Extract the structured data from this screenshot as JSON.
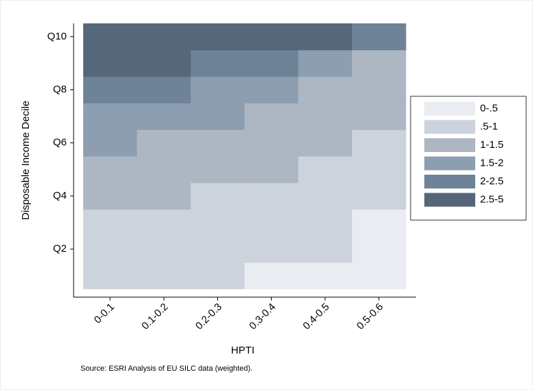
{
  "chart_data": {
    "type": "heatmap",
    "x_label": "HPTI",
    "y_label": "Disposable Income Decile",
    "note": "Source:  ESRI Analysis of EU SILC data (weighted).",
    "categories": [
      "0-0.1",
      "0.1-0.2",
      "0.2-0.3",
      "0.3-0.4",
      "0.4-0.5",
      "0.5-0.6"
    ],
    "y": [
      1,
      2,
      3,
      4,
      5,
      6,
      7,
      8,
      9,
      10
    ],
    "ylim": [
      0.5,
      10.5
    ],
    "yticks": [
      {
        "value": 2,
        "label": "Q2"
      },
      {
        "value": 4,
        "label": "Q4"
      },
      {
        "value": 6,
        "label": "Q6"
      },
      {
        "value": 8,
        "label": "Q8"
      },
      {
        "value": 10,
        "label": "Q10"
      }
    ],
    "z": [
      [
        0.75,
        0.75,
        0.75,
        0.25,
        0.25,
        0.25
      ],
      [
        0.75,
        0.75,
        0.75,
        0.75,
        0.75,
        0.25
      ],
      [
        0.75,
        0.75,
        0.75,
        0.75,
        0.75,
        0.25
      ],
      [
        1.25,
        1.25,
        0.75,
        0.75,
        0.75,
        0.75
      ],
      [
        1.25,
        1.25,
        1.25,
        1.25,
        0.75,
        0.75
      ],
      [
        1.75,
        1.25,
        1.25,
        1.25,
        1.25,
        0.75
      ],
      [
        1.75,
        1.75,
        1.75,
        1.25,
        1.25,
        1.25
      ],
      [
        2.25,
        2.25,
        1.75,
        1.75,
        1.25,
        1.25
      ],
      [
        3.75,
        3.75,
        2.25,
        2.25,
        1.75,
        1.25
      ],
      [
        3.75,
        3.75,
        3.75,
        3.75,
        3.75,
        2.25
      ]
    ],
    "legend": {
      "bins": [
        0,
        0.5,
        1,
        1.5,
        2,
        2.5,
        5
      ],
      "labels": [
        "0-.5",
        ".5-1",
        "1-1.5",
        "1.5-2",
        "2-2.5",
        "2.5-5"
      ],
      "colors": [
        "#e9ecf0",
        "#cdd3dd",
        "#adb7c3",
        "#8d9eb0",
        "#6e8298",
        "#56677a"
      ],
      "position": "right"
    }
  }
}
